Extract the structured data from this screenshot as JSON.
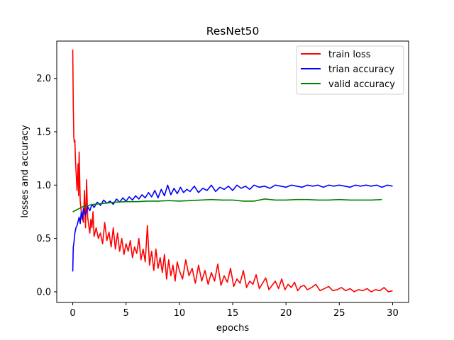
{
  "chart_data": {
    "type": "line",
    "title": "ResNet50",
    "xlabel": "epochs",
    "ylabel": "losses and accuracy",
    "xlim": [
      -1.5,
      31.5
    ],
    "ylim": [
      -0.1,
      2.35
    ],
    "xticks": [
      0,
      5,
      10,
      15,
      20,
      25,
      30
    ],
    "yticks": [
      0.0,
      0.5,
      1.0,
      1.5,
      2.0
    ],
    "xtick_labels": [
      "0",
      "5",
      "10",
      "15",
      "20",
      "25",
      "30"
    ],
    "ytick_labels": [
      "0.0",
      "0.5",
      "1.0",
      "1.5",
      "2.0"
    ],
    "grid": false,
    "legend_position": "top-right",
    "series": [
      {
        "name": "train loss",
        "color": "#ff0000",
        "x": [
          0,
          0.05,
          0.1,
          0.15,
          0.2,
          0.25,
          0.3,
          0.35,
          0.4,
          0.5,
          0.55,
          0.6,
          0.7,
          0.8,
          0.9,
          1.0,
          1.1,
          1.2,
          1.3,
          1.4,
          1.5,
          1.6,
          1.7,
          1.8,
          1.9,
          2.0,
          2.2,
          2.4,
          2.6,
          2.8,
          3.0,
          3.2,
          3.4,
          3.6,
          3.8,
          4.0,
          4.2,
          4.4,
          4.6,
          4.8,
          5.0,
          5.2,
          5.4,
          5.6,
          5.8,
          6.0,
          6.2,
          6.4,
          6.6,
          6.8,
          7.0,
          7.2,
          7.4,
          7.6,
          7.8,
          8.0,
          8.2,
          8.4,
          8.6,
          8.8,
          9.0,
          9.2,
          9.4,
          9.6,
          9.8,
          10.0,
          10.3,
          10.6,
          10.9,
          11.2,
          11.5,
          11.8,
          12.1,
          12.4,
          12.7,
          13.0,
          13.3,
          13.6,
          13.9,
          14.2,
          14.5,
          14.8,
          15.1,
          15.4,
          15.7,
          16.0,
          16.3,
          16.6,
          16.9,
          17.2,
          17.5,
          17.8,
          18.1,
          18.4,
          18.7,
          19.0,
          19.3,
          19.6,
          19.9,
          20.2,
          20.5,
          20.8,
          21.1,
          21.4,
          21.7,
          22.0,
          22.4,
          22.8,
          23.2,
          23.6,
          24.0,
          24.4,
          24.8,
          25.2,
          25.6,
          26.0,
          26.4,
          26.8,
          27.2,
          27.6,
          28.0,
          28.4,
          28.8,
          29.2,
          29.6,
          30.0
        ],
        "values": [
          2.27,
          1.75,
          1.45,
          1.4,
          1.42,
          1.25,
          1.15,
          1.05,
          0.95,
          1.2,
          0.9,
          1.31,
          0.85,
          0.75,
          0.7,
          0.65,
          0.95,
          0.6,
          1.05,
          0.7,
          0.62,
          0.55,
          0.68,
          0.6,
          0.75,
          0.52,
          0.6,
          0.5,
          0.55,
          0.45,
          0.65,
          0.48,
          0.56,
          0.42,
          0.6,
          0.4,
          0.55,
          0.38,
          0.5,
          0.35,
          0.45,
          0.38,
          0.48,
          0.32,
          0.42,
          0.36,
          0.5,
          0.3,
          0.4,
          0.28,
          0.62,
          0.25,
          0.38,
          0.2,
          0.4,
          0.22,
          0.32,
          0.18,
          0.35,
          0.12,
          0.3,
          0.15,
          0.25,
          0.1,
          0.28,
          0.2,
          0.12,
          0.3,
          0.15,
          0.22,
          0.08,
          0.25,
          0.1,
          0.2,
          0.07,
          0.18,
          0.1,
          0.26,
          0.06,
          0.15,
          0.09,
          0.22,
          0.05,
          0.12,
          0.08,
          0.2,
          0.04,
          0.1,
          0.07,
          0.16,
          0.03,
          0.08,
          0.13,
          0.02,
          0.06,
          0.1,
          0.03,
          0.12,
          0.02,
          0.07,
          0.04,
          0.09,
          0.01,
          0.05,
          0.06,
          0.02,
          0.04,
          0.07,
          0.01,
          0.03,
          0.05,
          0.01,
          0.02,
          0.04,
          0.01,
          0.03,
          0.0,
          0.02,
          0.01,
          0.03,
          0.0,
          0.02,
          0.01,
          0.04,
          0.0,
          0.01
        ]
      },
      {
        "name": "trian accuracy",
        "color": "#0000ff",
        "x": [
          0,
          0.05,
          0.1,
          0.2,
          0.3,
          0.4,
          0.5,
          0.6,
          0.7,
          0.8,
          0.9,
          1.0,
          1.2,
          1.4,
          1.6,
          1.8,
          2.0,
          2.3,
          2.6,
          2.9,
          3.2,
          3.5,
          3.8,
          4.1,
          4.4,
          4.7,
          5.0,
          5.3,
          5.6,
          5.9,
          6.2,
          6.5,
          6.8,
          7.1,
          7.4,
          7.7,
          8.0,
          8.3,
          8.6,
          8.9,
          9.2,
          9.5,
          9.8,
          10.1,
          10.4,
          10.7,
          11.0,
          11.4,
          11.8,
          12.2,
          12.6,
          13.0,
          13.4,
          13.8,
          14.2,
          14.6,
          15.0,
          15.4,
          15.8,
          16.2,
          16.6,
          17.0,
          17.5,
          18.0,
          18.5,
          19.0,
          19.5,
          20.0,
          20.5,
          21.0,
          21.5,
          22.0,
          22.5,
          23.0,
          23.5,
          24.0,
          24.5,
          25.0,
          25.5,
          26.0,
          26.5,
          27.0,
          27.5,
          28.0,
          28.5,
          29.0,
          29.5,
          30.0
        ],
        "values": [
          0.19,
          0.42,
          0.45,
          0.55,
          0.6,
          0.62,
          0.66,
          0.7,
          0.64,
          0.75,
          0.68,
          0.78,
          0.72,
          0.8,
          0.76,
          0.82,
          0.79,
          0.84,
          0.81,
          0.86,
          0.83,
          0.85,
          0.82,
          0.87,
          0.84,
          0.88,
          0.85,
          0.89,
          0.86,
          0.9,
          0.87,
          0.91,
          0.88,
          0.93,
          0.89,
          0.95,
          0.88,
          0.96,
          0.9,
          1.0,
          0.91,
          0.97,
          0.92,
          0.98,
          0.93,
          0.96,
          0.94,
          0.99,
          0.93,
          0.97,
          0.95,
          1.0,
          0.94,
          0.98,
          0.96,
          0.99,
          0.95,
          1.0,
          0.97,
          0.99,
          0.96,
          1.0,
          0.98,
          0.99,
          0.97,
          1.0,
          0.99,
          0.98,
          1.0,
          0.99,
          0.98,
          1.0,
          0.99,
          1.0,
          0.98,
          1.0,
          0.99,
          1.0,
          0.99,
          0.98,
          1.0,
          0.99,
          1.0,
          0.99,
          1.0,
          0.98,
          1.0,
          0.99
        ]
      },
      {
        "name": "valid accuracy",
        "color": "#008000",
        "x": [
          0,
          1,
          2,
          3,
          4,
          5,
          6,
          7,
          8,
          9,
          10,
          11,
          12,
          13,
          14,
          15,
          16,
          17,
          18,
          19,
          20,
          21,
          22,
          23,
          24,
          25,
          26,
          27,
          28,
          29
        ],
        "values": [
          0.75,
          0.8,
          0.82,
          0.83,
          0.84,
          0.845,
          0.845,
          0.85,
          0.85,
          0.855,
          0.85,
          0.855,
          0.86,
          0.865,
          0.86,
          0.86,
          0.85,
          0.85,
          0.87,
          0.86,
          0.86,
          0.865,
          0.865,
          0.86,
          0.86,
          0.865,
          0.86,
          0.86,
          0.86,
          0.865
        ]
      }
    ]
  }
}
